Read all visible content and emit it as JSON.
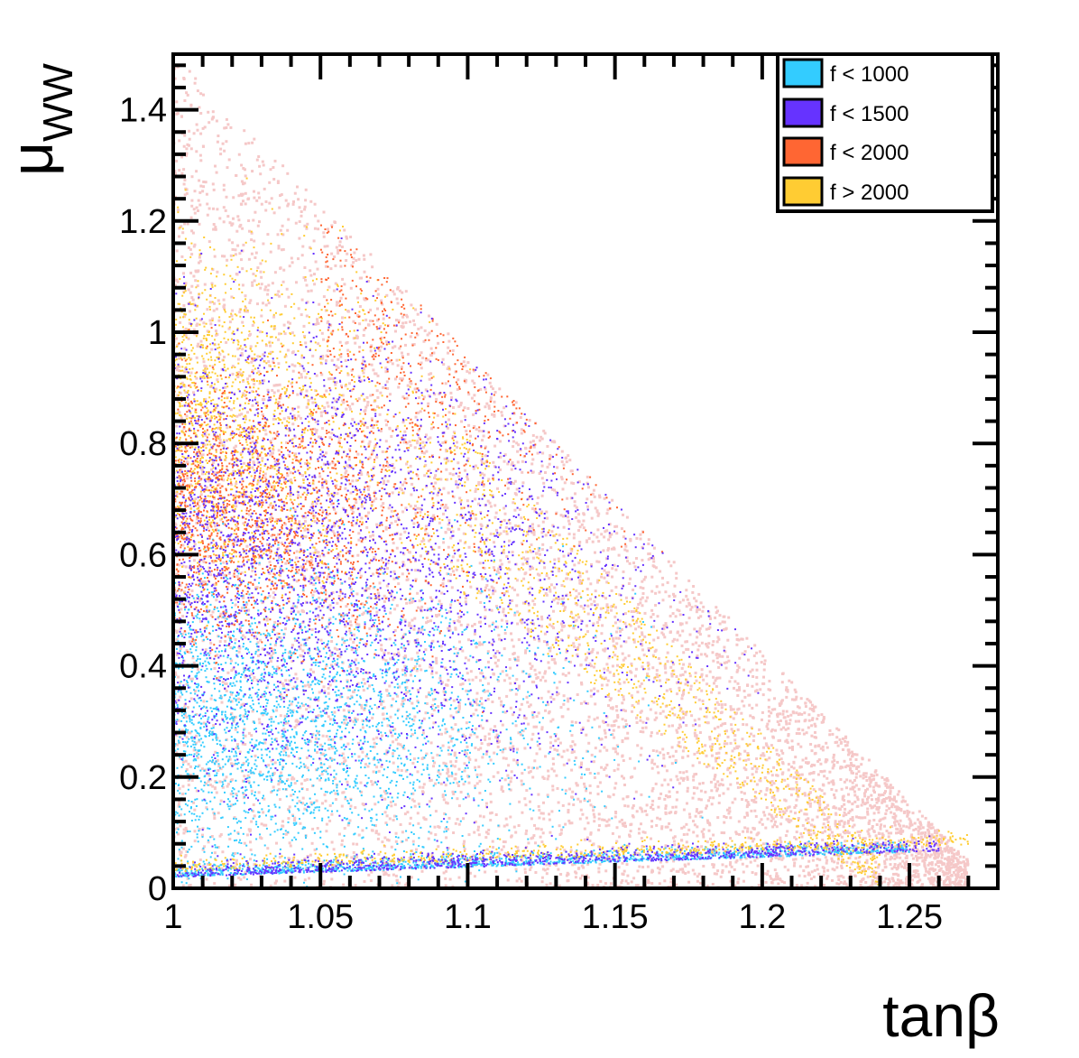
{
  "chart_data": {
    "type": "scatter",
    "title": "",
    "xlabel": "tanβ",
    "ylabel_main": "μ",
    "ylabel_sub": "WW",
    "xlim": [
      1.0,
      1.28
    ],
    "ylim": [
      0.0,
      1.5
    ],
    "x_ticks": [
      {
        "value": 1.0,
        "label": "1"
      },
      {
        "value": 1.05,
        "label": "1.05"
      },
      {
        "value": 1.1,
        "label": "1.1"
      },
      {
        "value": 1.15,
        "label": "1.15"
      },
      {
        "value": 1.2,
        "label": "1.2"
      },
      {
        "value": 1.25,
        "label": "1.25"
      }
    ],
    "y_ticks": [
      {
        "value": 0.0,
        "label": "0"
      },
      {
        "value": 0.2,
        "label": "0.2"
      },
      {
        "value": 0.4,
        "label": "0.4"
      },
      {
        "value": 0.6,
        "label": "0.6"
      },
      {
        "value": 0.8,
        "label": "0.8"
      },
      {
        "value": 1.0,
        "label": "1"
      },
      {
        "value": 1.2,
        "label": "1.2"
      },
      {
        "value": 1.4,
        "label": "1.4"
      }
    ],
    "grid": false,
    "legend_position": "top-right",
    "background_points_color": "#f5c8c8",
    "series": [
      {
        "name": "f < 1000",
        "color": "#33ccff"
      },
      {
        "name": "f < 1500",
        "color": "#6633ff"
      },
      {
        "name": "f < 2000",
        "color": "#ff6633"
      },
      {
        "name": "f > 2000",
        "color": "#ffcc33"
      }
    ]
  }
}
